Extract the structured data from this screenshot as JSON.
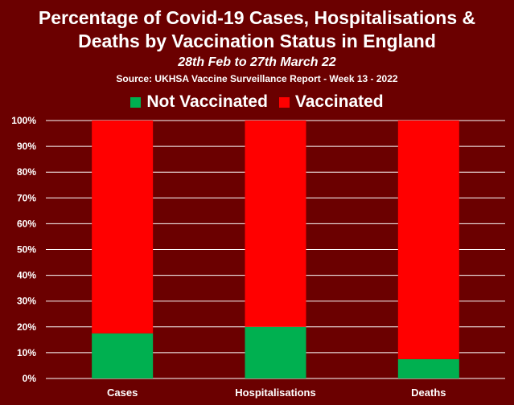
{
  "title_line_1": "Percentage of Covid-19 Cases, Hospitalisations &",
  "title_line_2": "Deaths by Vaccination Status in England",
  "subtitle": "28th Feb to 27th March 22",
  "source": "Source: UKHSA Vaccine Surveillance Report - Week 13 - 2022",
  "colors": {
    "background": "#6b0000",
    "not_vaccinated": "#00b050",
    "vaccinated": "#ff0000",
    "gridline": "#ffffff"
  },
  "chart_data": {
    "type": "bar",
    "stacked": true,
    "categories": [
      "Cases",
      "Hospitalisations",
      "Deaths"
    ],
    "series": [
      {
        "name": "Not Vaccinated",
        "values": [
          17.5,
          20,
          7.5
        ]
      },
      {
        "name": "Vaccinated",
        "values": [
          82.5,
          80,
          92.5
        ]
      }
    ],
    "y_tick_labels": [
      "0%",
      "10%",
      "20%",
      "30%",
      "40%",
      "50%",
      "60%",
      "70%",
      "80%",
      "90%",
      "100%"
    ],
    "ylim": [
      0,
      100
    ],
    "grid": true,
    "legend_position": "top"
  }
}
